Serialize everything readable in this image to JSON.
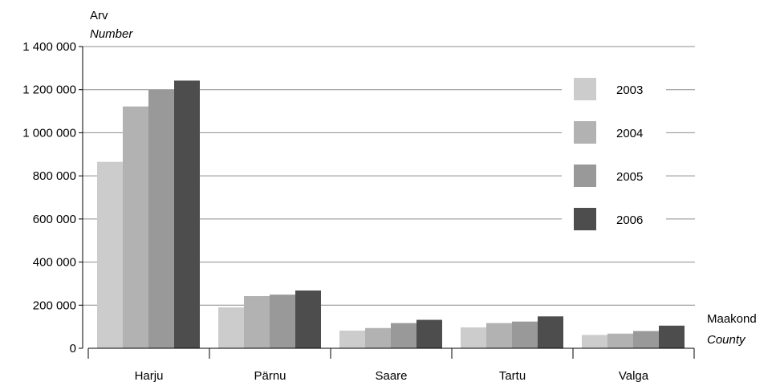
{
  "chart_data": {
    "type": "bar",
    "ylabel": "Arv",
    "ylabel_en": "Number",
    "xlabel": "Maakond",
    "xlabel_en": "County",
    "categories": [
      "Harju",
      "Pärnu",
      "Saare",
      "Tartu",
      "Valga"
    ],
    "series": [
      {
        "name": "2003",
        "color": "#cccccc",
        "values": [
          865000,
          190000,
          82000,
          97000,
          62000
        ]
      },
      {
        "name": "2004",
        "color": "#b2b2b2",
        "values": [
          1122000,
          242000,
          94000,
          117000,
          68000
        ]
      },
      {
        "name": "2005",
        "color": "#999999",
        "values": [
          1200000,
          249000,
          117000,
          124000,
          80000
        ]
      },
      {
        "name": "2006",
        "color": "#4d4d4d",
        "values": [
          1242000,
          268000,
          132000,
          148000,
          105000
        ]
      }
    ],
    "ylim": [
      0,
      1400000
    ],
    "yticks": [
      0,
      200000,
      400000,
      600000,
      800000,
      1000000,
      1200000,
      1400000
    ],
    "ytick_labels": [
      "0",
      "200 000",
      "400 000",
      "600 000",
      "800 000",
      "1 000 000",
      "1 200 000",
      "1 400 000"
    ],
    "grid": true,
    "legend_position": "right"
  }
}
